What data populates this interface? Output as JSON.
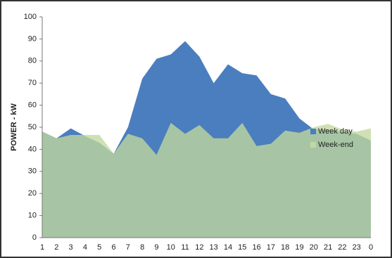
{
  "chart_data": {
    "type": "area",
    "ylabel": "POWER - kW",
    "categories": [
      1,
      2,
      3,
      4,
      5,
      6,
      7,
      8,
      9,
      10,
      11,
      12,
      13,
      14,
      15,
      16,
      17,
      18,
      19,
      20,
      21,
      22,
      23,
      0
    ],
    "series": [
      {
        "name": "Week day",
        "color": "#4a7ebf",
        "values": [
          48,
          45,
          49.5,
          46,
          43,
          38,
          50,
          72,
          81,
          83,
          89,
          82,
          70,
          78.5,
          74.5,
          73.5,
          65,
          63,
          54,
          49,
          49,
          48,
          47,
          44
        ]
      },
      {
        "name": "Week-end",
        "color": "#c2d89e",
        "values": [
          48,
          45,
          46.5,
          46.5,
          46.5,
          38,
          47,
          45,
          37.5,
          52,
          47,
          51,
          45,
          45,
          52,
          41.5,
          42.5,
          48.5,
          47.5,
          50,
          51.5,
          49,
          48,
          49.5
        ]
      }
    ],
    "ylim": [
      0,
      100
    ],
    "yticks": [
      0,
      10,
      20,
      30,
      40,
      50,
      60,
      70,
      80,
      90,
      100
    ],
    "legend": "right",
    "grid": false
  }
}
